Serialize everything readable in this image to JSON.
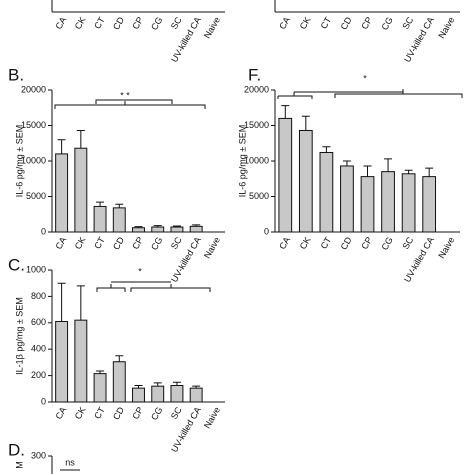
{
  "chart_data": [
    {
      "type": "bar",
      "categories": [
        "CA",
        "CK",
        "CT",
        "CD",
        "CP",
        "CG",
        "SC",
        "UV-killed CA",
        "Naive"
      ]
    },
    {
      "type": "bar",
      "categories": [
        "CA",
        "CK",
        "CT",
        "CD",
        "CP",
        "CG",
        "SC",
        "UV-killed CA",
        "Naive"
      ]
    },
    {
      "type": "bar",
      "panel_label": "B.",
      "y_label": "IL-6 pg/mg ± SEM",
      "annotation": "* *",
      "categories": [
        "CA",
        "CK",
        "CT",
        "CD",
        "CP",
        "CG",
        "SC",
        "UV-killed CA",
        "Naive"
      ],
      "values": [
        11000,
        11800,
        3600,
        3400,
        600,
        700,
        700,
        800,
        0
      ],
      "errors": [
        2000,
        2500,
        600,
        500,
        150,
        200,
        150,
        200,
        0
      ],
      "color": "#c8c8c8",
      "ylim": [
        0,
        20000
      ],
      "yticks": [
        0,
        5000,
        10000,
        15000,
        20000
      ]
    },
    {
      "type": "bar",
      "panel_label": "F.",
      "y_label": "IL-6 pg/mg ± SEM",
      "annotation": "*",
      "categories": [
        "CA",
        "CK",
        "CT",
        "CD",
        "CP",
        "CG",
        "SC",
        "UV-killed CA",
        "Naive"
      ],
      "values": [
        16000,
        14300,
        11200,
        9300,
        7800,
        8500,
        8200,
        7800,
        null
      ],
      "errors": [
        1800,
        2000,
        800,
        700,
        1500,
        1800,
        500,
        1200,
        null
      ],
      "color": "#c8c8c8",
      "ylim": [
        0,
        20000
      ],
      "yticks": [
        0,
        5000,
        10000,
        15000,
        20000
      ]
    },
    {
      "type": "bar",
      "panel_label": "C.",
      "y_label": "IL-1β pg/mg ± SEM",
      "annotation": "*",
      "categories": [
        "CA",
        "CK",
        "CT",
        "CD",
        "CP",
        "CG",
        "SC",
        "UV-killed CA",
        "Naive"
      ],
      "values": [
        610,
        620,
        215,
        305,
        105,
        120,
        125,
        105,
        null
      ],
      "errors": [
        290,
        260,
        20,
        45,
        20,
        25,
        25,
        15,
        null
      ],
      "color": "#c8c8c8",
      "ylim": [
        0,
        1000
      ],
      "yticks": [
        0,
        200,
        400,
        600,
        800,
        1000
      ]
    },
    {
      "type": "bar",
      "panel_label": "D.",
      "y_label": "M",
      "annotation": "ns",
      "yticks": [
        300
      ]
    }
  ]
}
